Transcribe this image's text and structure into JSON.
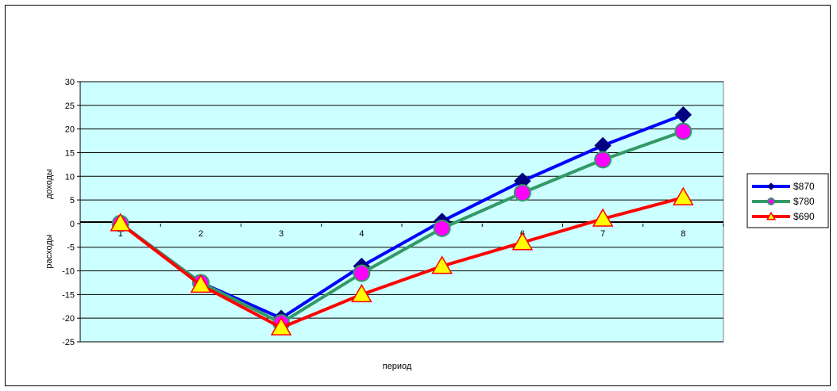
{
  "chart_data": {
    "type": "line",
    "categories": [
      "1",
      "2",
      "3",
      "4",
      "5",
      "6",
      "7",
      "8"
    ],
    "series": [
      {
        "name": "$870",
        "color": "#0000ff",
        "marker": "diamond",
        "marker_color": "#000080",
        "values": [
          0,
          -12.5,
          -20,
          -9,
          0.5,
          9,
          16.5,
          23
        ]
      },
      {
        "name": "$780",
        "color": "#339966",
        "marker": "circle",
        "marker_color": "#ff00ff",
        "values": [
          0,
          -12.5,
          -21,
          -10.5,
          -1,
          6.5,
          13.5,
          19.5
        ]
      },
      {
        "name": "$690",
        "color": "#ff0000",
        "marker": "triangle",
        "marker_color": "#ffff00",
        "values": [
          0,
          -13,
          -22,
          -15,
          -9,
          -4,
          1,
          5.5
        ]
      }
    ],
    "y_ticks": [
      "30",
      "25",
      "20",
      "15",
      "10",
      "5",
      "0",
      "-5",
      "-10",
      "-15",
      "-20",
      "-25"
    ],
    "ylim": [
      -25,
      30
    ],
    "xlabel": "период",
    "ylabel_top": "доходы",
    "ylabel_bottom": "расходы",
    "plot_background": "#ccffff",
    "grid": true,
    "legend_position": "right"
  }
}
